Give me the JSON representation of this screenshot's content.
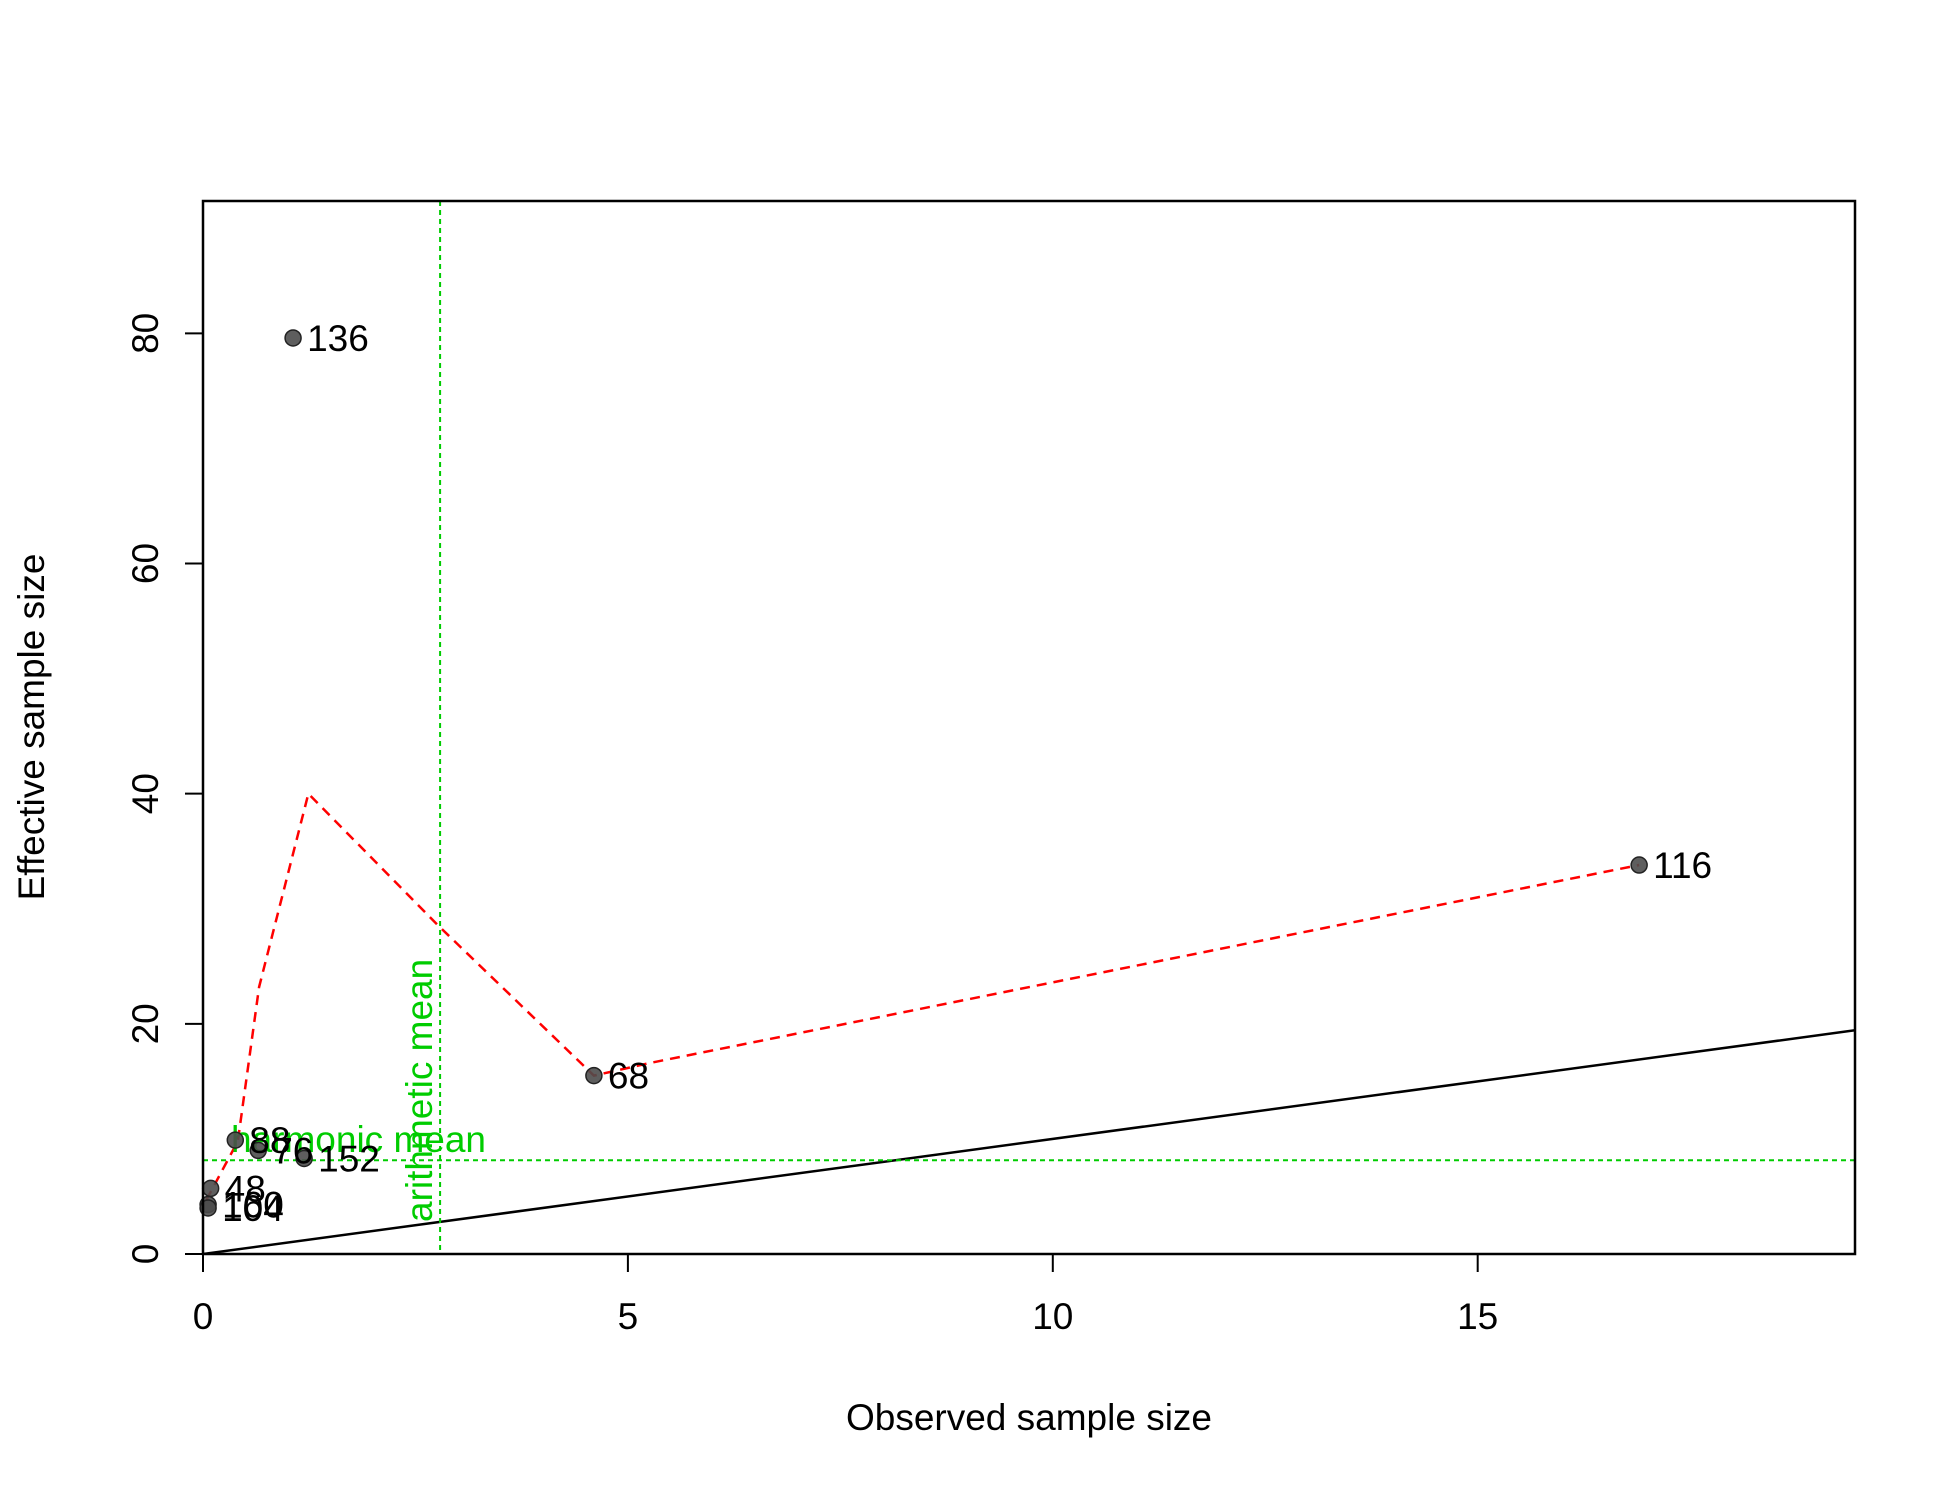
{
  "chart_data": {
    "type": "scatter",
    "xlabel": "Observed sample size",
    "ylabel": "Effective sample size",
    "xlim": [
      0,
      19.44
    ],
    "ylim": [
      0,
      91.5
    ],
    "xticks": [
      0,
      5,
      10,
      15
    ],
    "yticks": [
      0,
      20,
      40,
      60,
      80
    ],
    "points": {
      "color": "#4d4d4d",
      "labels": [
        "136",
        "116",
        "68",
        "152",
        "76",
        "88",
        "48",
        "160",
        "104"
      ],
      "x": [
        1.06,
        16.9,
        4.6,
        1.19,
        0.65,
        0.38,
        0.09,
        0.06,
        0.06
      ],
      "y": [
        79.6,
        33.8,
        15.5,
        8.3,
        9.0,
        9.9,
        5.7,
        4.3,
        4.0
      ]
    },
    "smooth": {
      "color": "#ff0000",
      "x": [
        0.04,
        0.41,
        0.66,
        1.24,
        2.76,
        4.6,
        5.26,
        16.9
      ],
      "y": [
        4.7,
        9.8,
        23.2,
        40,
        28.6,
        15.5,
        16.6,
        33.8
      ]
    },
    "identity_line": {
      "intercept": 0,
      "slope": 1,
      "color": "#000000"
    },
    "vline": {
      "value": 2.79,
      "label": "arithmetic mean",
      "color": "#00cc00"
    },
    "hline": {
      "value": 8.15,
      "label": "harmonic mean",
      "color": "#00cc00"
    }
  }
}
